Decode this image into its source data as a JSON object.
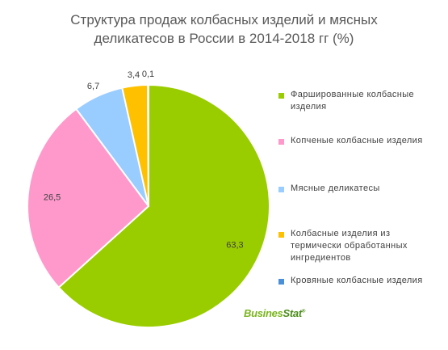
{
  "title": {
    "line1": "Структура продаж колбасных изделий и мясных",
    "line2": "деликатесов в России в 2014-2018 гг (%)"
  },
  "logo": {
    "part1": "Busines",
    "part2": "Stat",
    "mark": "®"
  },
  "chart_data": {
    "type": "pie",
    "title": "Структура продаж колбасных изделий и мясных деликатесов в России в 2014-2018 гг (%)",
    "legend_position": "right",
    "start_angle_deg": 0,
    "direction": "clockwise",
    "slices": [
      {
        "label": "Фаршированные колбасные изделия",
        "value": 63.3,
        "value_label": "63,3",
        "color": "#9ACD00"
      },
      {
        "label": "Копченые колбасные изделия",
        "value": 26.5,
        "value_label": "26,5",
        "color": "#FF99CC"
      },
      {
        "label": "Мясные деликатесы",
        "value": 6.7,
        "value_label": "6,7",
        "color": "#99CCFF"
      },
      {
        "label": "Колбасные изделия из термически обработанных ингредиентов",
        "value": 3.4,
        "value_label": "3,4",
        "color": "#FFC000"
      },
      {
        "label": "Кровяные колбасные изделия",
        "value": 0.1,
        "value_label": "0,1",
        "color": "#4A90D9"
      }
    ]
  },
  "legend": [
    {
      "line1": "Фаршированные колбасные",
      "line2": "изделия",
      "line3": ""
    },
    {
      "line1": "Копченые колбасные изделия",
      "line2": "",
      "line3": ""
    },
    {
      "line1": "Мясные деликатесы",
      "line2": "",
      "line3": ""
    },
    {
      "line1": "Колбасные изделия из",
      "line2": "термически обработанных",
      "line3": "ингредиентов"
    },
    {
      "line1": "Кровяные колбасные изделия",
      "line2": "",
      "line3": ""
    }
  ]
}
